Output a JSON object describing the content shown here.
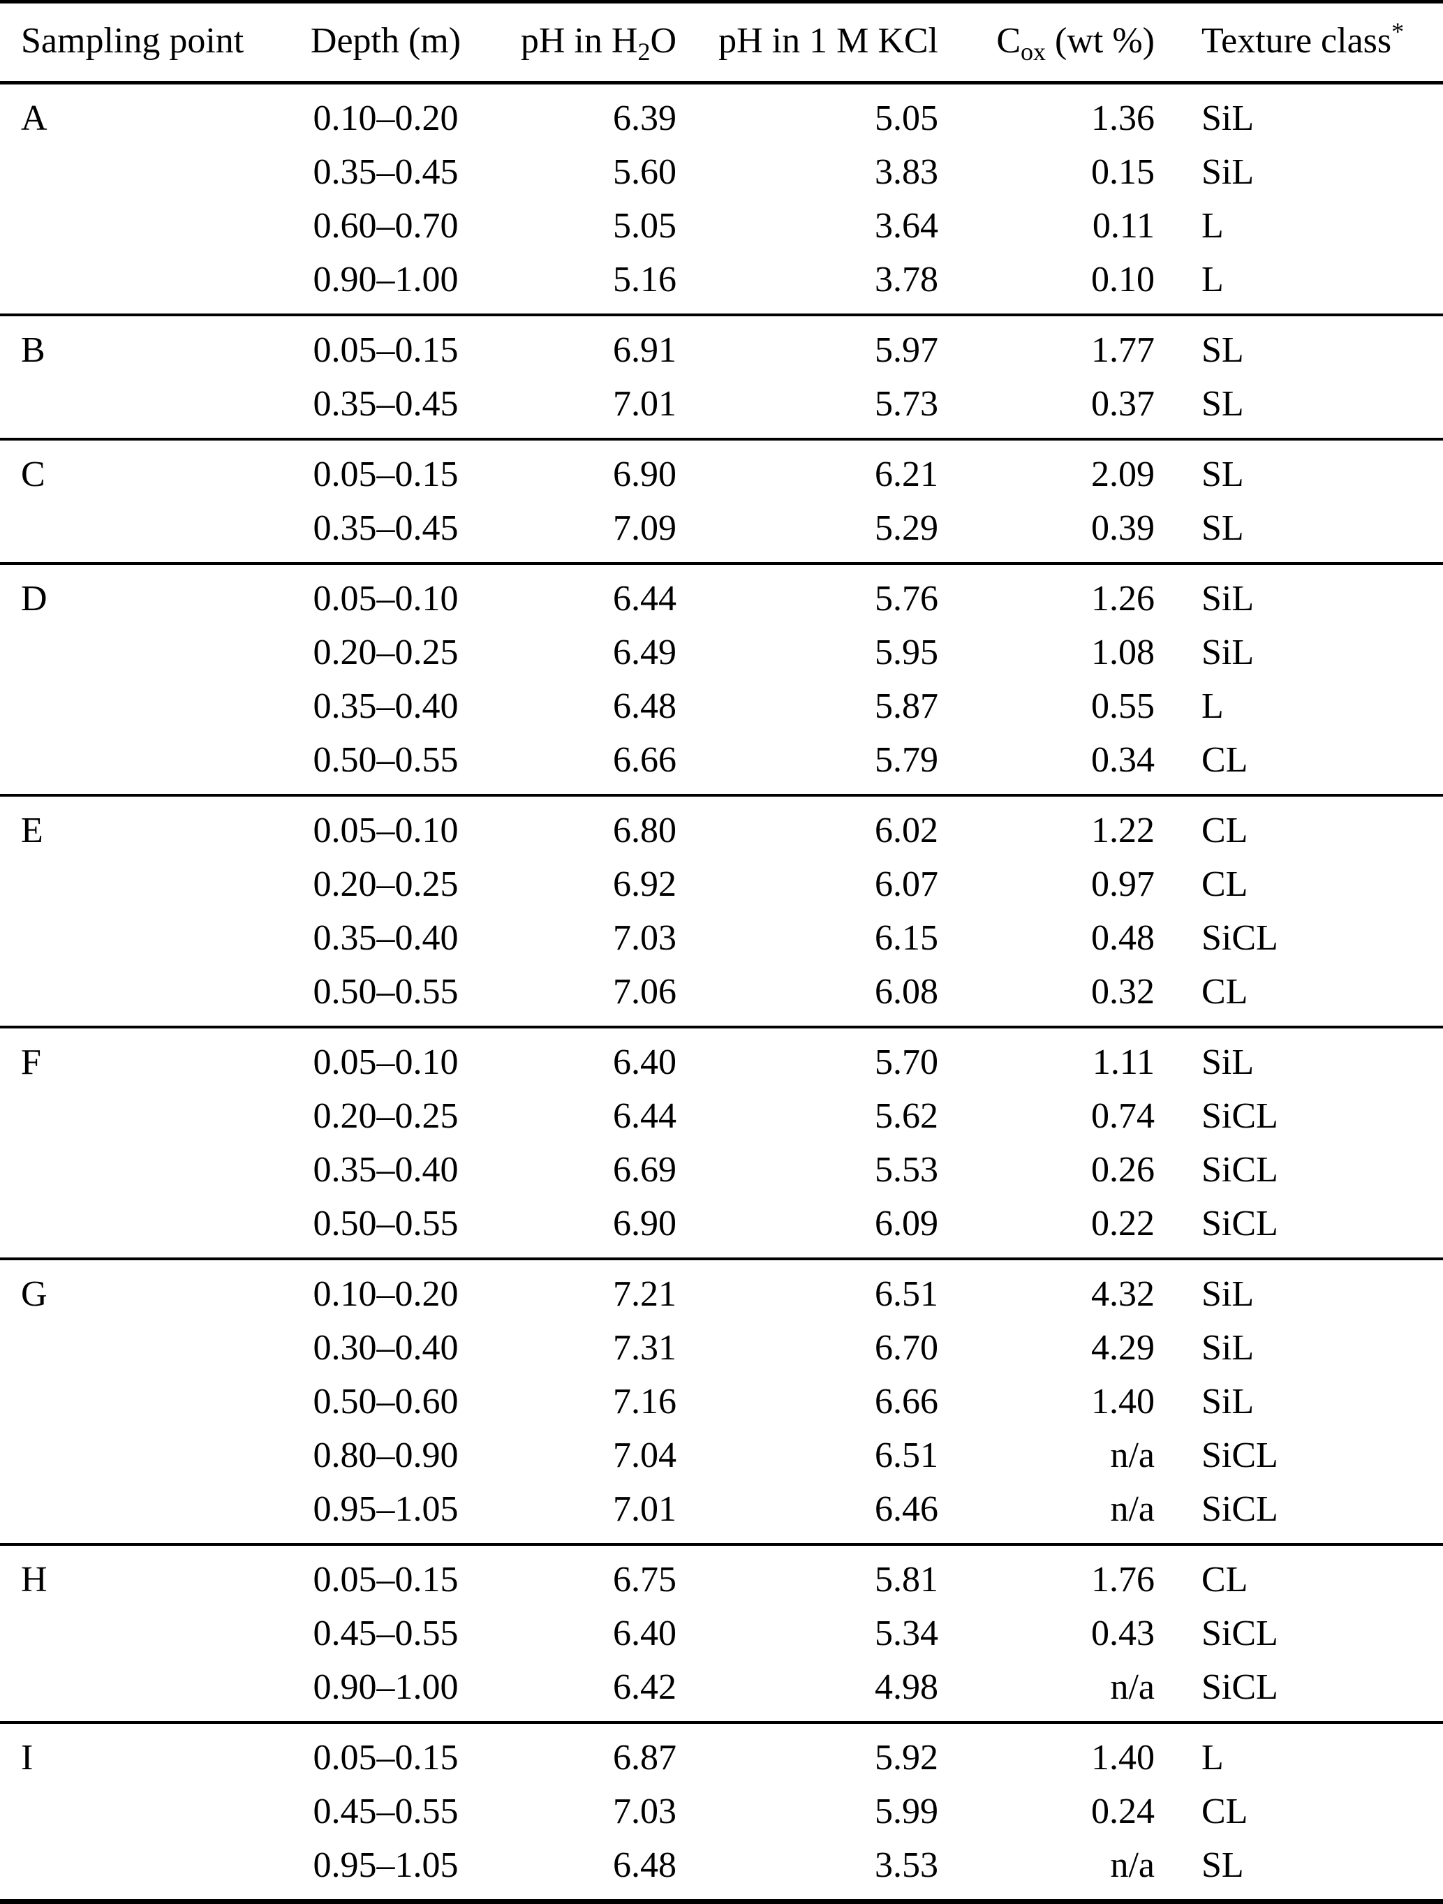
{
  "table": {
    "header": {
      "cells": [
        {
          "name": "sampling-point",
          "align": "left",
          "segments": [
            {
              "text": "Sampling point"
            }
          ]
        },
        {
          "name": "depth",
          "align": "center",
          "segments": [
            {
              "text": "Depth (m)"
            }
          ]
        },
        {
          "name": "ph-h2o",
          "align": "right",
          "segments": [
            {
              "text": "pH in H"
            },
            {
              "text": "2",
              "pos": "sub"
            },
            {
              "text": "O"
            }
          ]
        },
        {
          "name": "ph-kcl",
          "align": "right",
          "segments": [
            {
              "text": "pH in 1 M KCl"
            }
          ]
        },
        {
          "name": "cox",
          "align": "right",
          "segments": [
            {
              "text": "C"
            },
            {
              "text": "ox",
              "pos": "sub"
            },
            {
              "text": " (wt %)"
            }
          ]
        },
        {
          "name": "texture",
          "align": "left",
          "segments": [
            {
              "text": "Texture class"
            },
            {
              "text": "*",
              "pos": "sup"
            }
          ]
        }
      ]
    },
    "groups": [
      {
        "sampling_point": "A",
        "rows": [
          {
            "depth": "0.10–0.20",
            "ph_h2o": "6.39",
            "ph_kcl": "5.05",
            "cox": "1.36",
            "texture": "SiL"
          },
          {
            "depth": "0.35–0.45",
            "ph_h2o": "5.60",
            "ph_kcl": "3.83",
            "cox": "0.15",
            "texture": "SiL"
          },
          {
            "depth": "0.60–0.70",
            "ph_h2o": "5.05",
            "ph_kcl": "3.64",
            "cox": "0.11",
            "texture": "L"
          },
          {
            "depth": "0.90–1.00",
            "ph_h2o": "5.16",
            "ph_kcl": "3.78",
            "cox": "0.10",
            "texture": "L"
          }
        ]
      },
      {
        "sampling_point": "B",
        "rows": [
          {
            "depth": "0.05–0.15",
            "ph_h2o": "6.91",
            "ph_kcl": "5.97",
            "cox": "1.77",
            "texture": "SL"
          },
          {
            "depth": "0.35–0.45",
            "ph_h2o": "7.01",
            "ph_kcl": "5.73",
            "cox": "0.37",
            "texture": "SL"
          }
        ]
      },
      {
        "sampling_point": "C",
        "rows": [
          {
            "depth": "0.05–0.15",
            "ph_h2o": "6.90",
            "ph_kcl": "6.21",
            "cox": "2.09",
            "texture": "SL"
          },
          {
            "depth": "0.35–0.45",
            "ph_h2o": "7.09",
            "ph_kcl": "5.29",
            "cox": "0.39",
            "texture": "SL"
          }
        ]
      },
      {
        "sampling_point": "D",
        "rows": [
          {
            "depth": "0.05–0.10",
            "ph_h2o": "6.44",
            "ph_kcl": "5.76",
            "cox": "1.26",
            "texture": "SiL"
          },
          {
            "depth": "0.20–0.25",
            "ph_h2o": "6.49",
            "ph_kcl": "5.95",
            "cox": "1.08",
            "texture": "SiL"
          },
          {
            "depth": "0.35–0.40",
            "ph_h2o": "6.48",
            "ph_kcl": "5.87",
            "cox": "0.55",
            "texture": "L"
          },
          {
            "depth": "0.50–0.55",
            "ph_h2o": "6.66",
            "ph_kcl": "5.79",
            "cox": "0.34",
            "texture": "CL"
          }
        ]
      },
      {
        "sampling_point": "E",
        "rows": [
          {
            "depth": "0.05–0.10",
            "ph_h2o": "6.80",
            "ph_kcl": "6.02",
            "cox": "1.22",
            "texture": "CL"
          },
          {
            "depth": "0.20–0.25",
            "ph_h2o": "6.92",
            "ph_kcl": "6.07",
            "cox": "0.97",
            "texture": "CL"
          },
          {
            "depth": "0.35–0.40",
            "ph_h2o": "7.03",
            "ph_kcl": "6.15",
            "cox": "0.48",
            "texture": "SiCL"
          },
          {
            "depth": "0.50–0.55",
            "ph_h2o": "7.06",
            "ph_kcl": "6.08",
            "cox": "0.32",
            "texture": "CL"
          }
        ]
      },
      {
        "sampling_point": "F",
        "rows": [
          {
            "depth": "0.05–0.10",
            "ph_h2o": "6.40",
            "ph_kcl": "5.70",
            "cox": "1.11",
            "texture": "SiL"
          },
          {
            "depth": "0.20–0.25",
            "ph_h2o": "6.44",
            "ph_kcl": "5.62",
            "cox": "0.74",
            "texture": "SiCL"
          },
          {
            "depth": "0.35–0.40",
            "ph_h2o": "6.69",
            "ph_kcl": "5.53",
            "cox": "0.26",
            "texture": "SiCL"
          },
          {
            "depth": "0.50–0.55",
            "ph_h2o": "6.90",
            "ph_kcl": "6.09",
            "cox": "0.22",
            "texture": "SiCL"
          }
        ]
      },
      {
        "sampling_point": "G",
        "rows": [
          {
            "depth": "0.10–0.20",
            "ph_h2o": "7.21",
            "ph_kcl": "6.51",
            "cox": "4.32",
            "texture": "SiL"
          },
          {
            "depth": "0.30–0.40",
            "ph_h2o": "7.31",
            "ph_kcl": "6.70",
            "cox": "4.29",
            "texture": "SiL"
          },
          {
            "depth": "0.50–0.60",
            "ph_h2o": "7.16",
            "ph_kcl": "6.66",
            "cox": "1.40",
            "texture": "SiL"
          },
          {
            "depth": "0.80–0.90",
            "ph_h2o": "7.04",
            "ph_kcl": "6.51",
            "cox": "n/a",
            "texture": "SiCL"
          },
          {
            "depth": "0.95–1.05",
            "ph_h2o": "7.01",
            "ph_kcl": "6.46",
            "cox": "n/a",
            "texture": "SiCL"
          }
        ]
      },
      {
        "sampling_point": "H",
        "rows": [
          {
            "depth": "0.05–0.15",
            "ph_h2o": "6.75",
            "ph_kcl": "5.81",
            "cox": "1.76",
            "texture": "CL"
          },
          {
            "depth": "0.45–0.55",
            "ph_h2o": "6.40",
            "ph_kcl": "5.34",
            "cox": "0.43",
            "texture": "SiCL"
          },
          {
            "depth": "0.90–1.00",
            "ph_h2o": "6.42",
            "ph_kcl": "4.98",
            "cox": "n/a",
            "texture": "SiCL"
          }
        ]
      },
      {
        "sampling_point": "I",
        "rows": [
          {
            "depth": "0.05–0.15",
            "ph_h2o": "6.87",
            "ph_kcl": "5.92",
            "cox": "1.40",
            "texture": "L"
          },
          {
            "depth": "0.45–0.55",
            "ph_h2o": "7.03",
            "ph_kcl": "5.99",
            "cox": "0.24",
            "texture": "CL"
          },
          {
            "depth": "0.95–1.05",
            "ph_h2o": "6.48",
            "ph_kcl": "3.53",
            "cox": "n/a",
            "texture": "SL"
          }
        ]
      }
    ]
  }
}
